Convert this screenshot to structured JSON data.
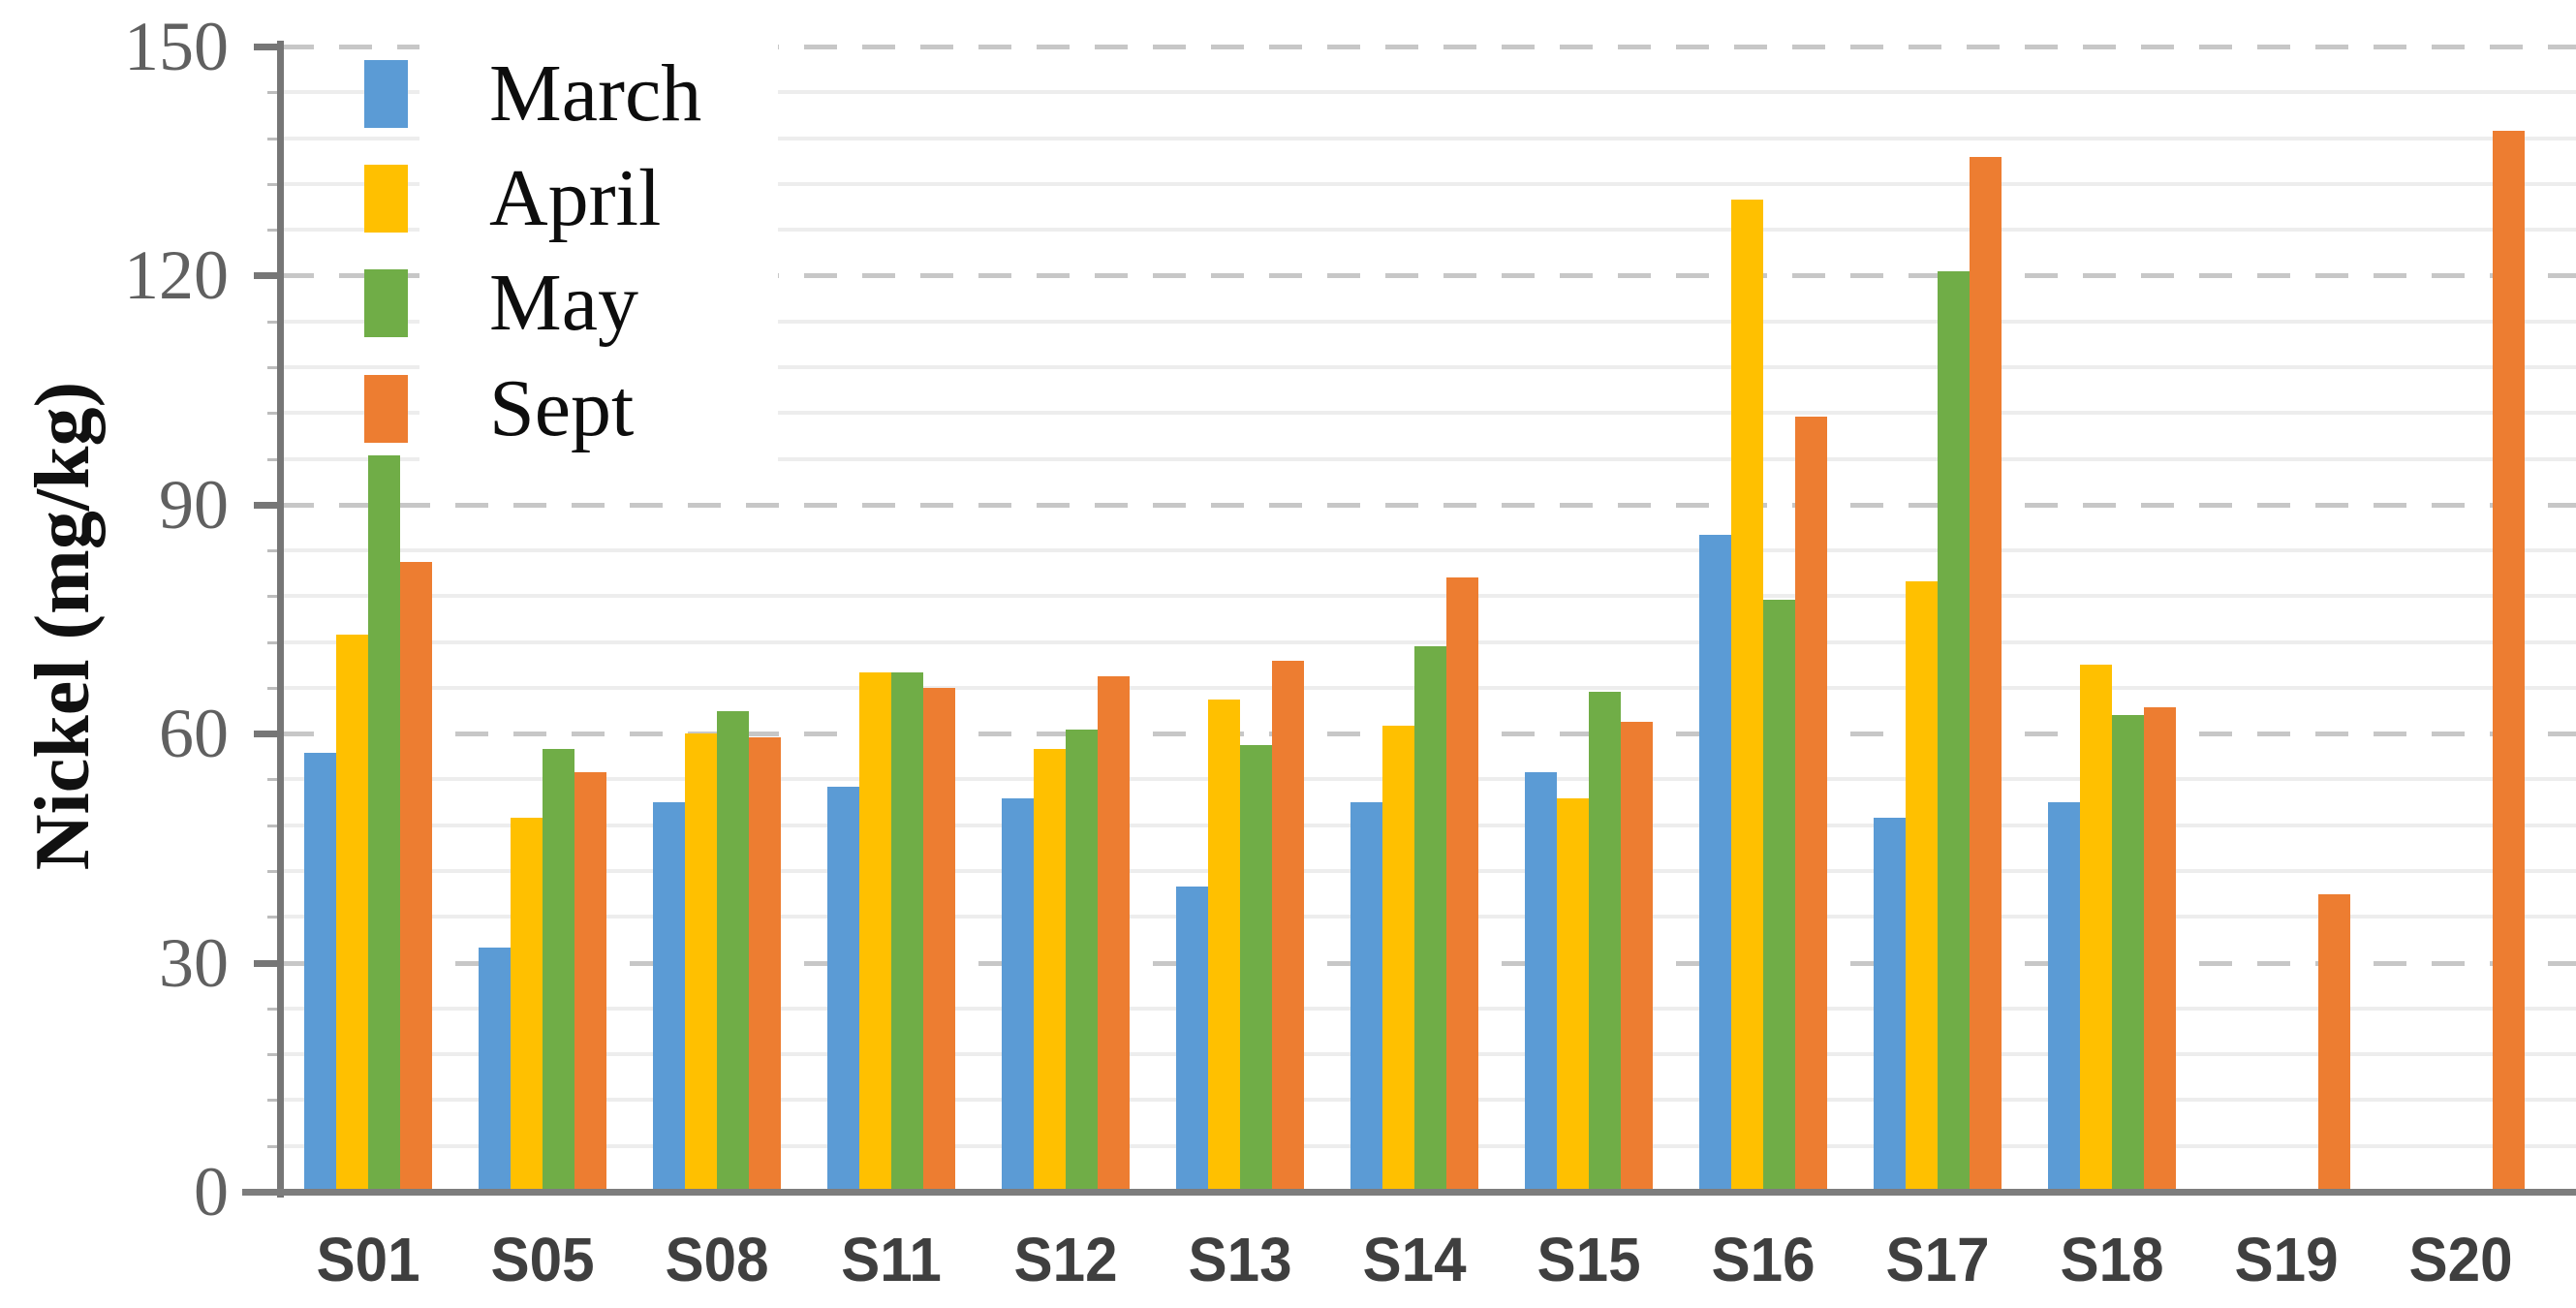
{
  "chart_data": {
    "type": "bar",
    "title": "",
    "xlabel": "",
    "ylabel": "Nickel (mg/kg)",
    "ylim": [
      0,
      150
    ],
    "yticks": [
      0,
      30,
      60,
      90,
      120,
      150
    ],
    "minor_unit": 6,
    "grid": {
      "major_dashed": true,
      "minor_lines": true
    },
    "legend_position": "top-left-inside",
    "categories": [
      "S01",
      "S05",
      "S08",
      "S11",
      "S12",
      "S13",
      "S14",
      "S15",
      "S16",
      "S17",
      "S18",
      "S19",
      "S20"
    ],
    "series": [
      {
        "name": "March",
        "color": "#5B9BD5",
        "values": [
          57.5,
          32,
          51,
          53,
          51.5,
          40,
          51,
          55,
          86,
          49,
          51,
          null,
          null
        ]
      },
      {
        "name": "April",
        "color": "#FFC000",
        "values": [
          73,
          49,
          60,
          68,
          58,
          64.5,
          61,
          51.5,
          130,
          80,
          69,
          null,
          null
        ]
      },
      {
        "name": "May",
        "color": "#70AD47",
        "values": [
          96.5,
          58,
          63,
          68,
          60.5,
          58.5,
          71.5,
          65.5,
          77.5,
          120.5,
          62.5,
          null,
          null
        ]
      },
      {
        "name": "Sept",
        "color": "#ED7D31",
        "values": [
          82.5,
          55,
          59.5,
          66,
          67.5,
          69.5,
          80.5,
          61.5,
          101.5,
          135.5,
          63.5,
          39,
          139
        ]
      }
    ],
    "colors": {
      "axis": "#767676",
      "major_grid": "#c7c7c7",
      "minor_grid": "#ededed",
      "y_tick_label": "#606060",
      "category_label": "#3f3f3f",
      "legend_text": "#0d0d0d"
    }
  }
}
